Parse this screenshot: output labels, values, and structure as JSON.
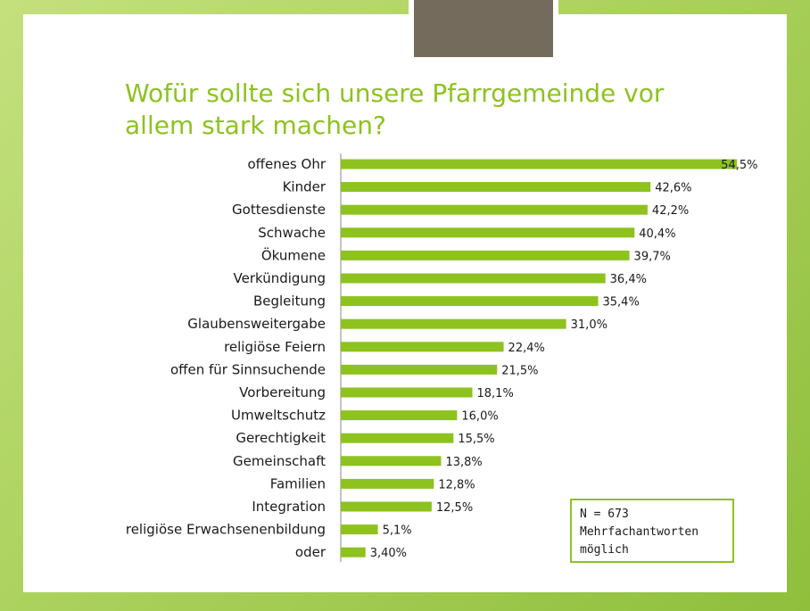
{
  "chart_data": {
    "type": "bar",
    "orientation": "horizontal",
    "title": [
      "Wofür sollte sich unsere Pfarrgemeinde vor",
      "allem stark machen?"
    ],
    "categories": [
      "offenes Ohr",
      "Kinder",
      "Gottesdienste",
      "Schwache",
      "Ökumene",
      "Verkündigung",
      "Begleitung",
      "Glaubensweitergabe",
      "religiöse Feiern",
      "offen für Sinnsuchende",
      "Vorbereitung",
      "Umweltschutz",
      "Gerechtigkeit",
      "Gemeinschaft",
      "Familien",
      "Integration",
      "religiöse Erwachsenenbildung",
      "oder"
    ],
    "values": [
      54.5,
      42.6,
      42.2,
      40.4,
      39.7,
      36.4,
      35.4,
      31.0,
      22.4,
      21.5,
      18.1,
      16.0,
      15.5,
      13.8,
      12.8,
      12.5,
      5.1,
      3.4
    ],
    "value_labels": [
      "54,5%",
      "42,6%",
      "42,2%",
      "40,4%",
      "39,7%",
      "36,4%",
      "35,4%",
      "31,0%",
      "22,4%",
      "21,5%",
      "18,1%",
      "16,0%",
      "15,5%",
      "13,8%",
      "12,8%",
      "12,5%",
      "5,1%",
      "3,40%"
    ],
    "color": "#8dc21f",
    "annotation": [
      "N = 673",
      "Mehrfachantworten",
      "möglich"
    ]
  }
}
